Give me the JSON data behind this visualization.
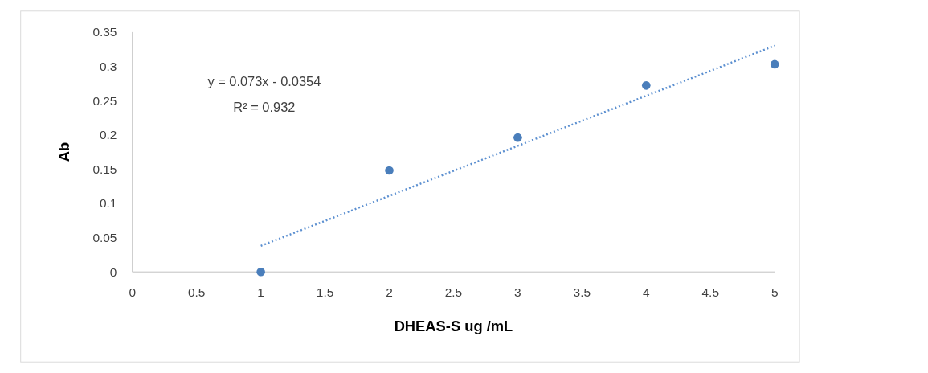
{
  "chart_data": {
    "type": "scatter",
    "xlabel": "DHEAS-S ug /mL",
    "ylabel": "Ab",
    "x": [
      1,
      2,
      3,
      4,
      5
    ],
    "series": [
      {
        "color": "#4a7ebb",
        "values": [
          0,
          0.148,
          0.196,
          0.272,
          0.303
        ]
      },
      {
        "type": "line",
        "color": "#5b8fd0",
        "x": [
          1,
          5
        ],
        "values": [
          0.038,
          0.33
        ],
        "line_style": "dotted",
        "marker": "none"
      }
    ],
    "annotations": [
      "y = 0.073x - 0.0354",
      "R² = 0.932"
    ],
    "marker": "circle",
    "xlim": [
      0,
      5
    ],
    "xticks": [
      0,
      0.5,
      1,
      1.5,
      2,
      2.5,
      3,
      3.5,
      4,
      4.5,
      5
    ],
    "ylim": [
      0,
      0.35
    ],
    "yticks": [
      0,
      0.05,
      0.1,
      0.15,
      0.2,
      0.25,
      0.3,
      0.35
    ],
    "grid": false
  }
}
